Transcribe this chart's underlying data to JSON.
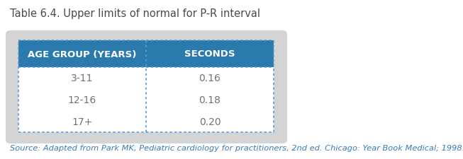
{
  "title": "Table 6.4. Upper limits of normal for P-R interval",
  "title_color": "#4a4a4a",
  "title_fontsize": 10.5,
  "header": [
    "AGE GROUP (YEARS)",
    "SECONDS"
  ],
  "rows": [
    [
      "3-11",
      "0.16"
    ],
    [
      "12-16",
      "0.18"
    ],
    [
      "17+",
      "0.20"
    ]
  ],
  "header_bg": "#2a7aad",
  "header_text_color": "#ffffff",
  "header_fontsize": 9.5,
  "row_text_color": "#7a6f6f",
  "row_fontsize": 10,
  "table_border_color": "#5b9bd5",
  "outer_box_color": "#d4d4d4",
  "source_text": "Source: Adapted from Park MK, Pediatric cardiology for practitioners, 2nd ed. Chicago: Year Book Medical; 1998.",
  "source_fontsize": 8.2,
  "source_color": "#3a7ab5",
  "fig_bg": "#ffffff",
  "fig_width": 653,
  "fig_height": 226
}
